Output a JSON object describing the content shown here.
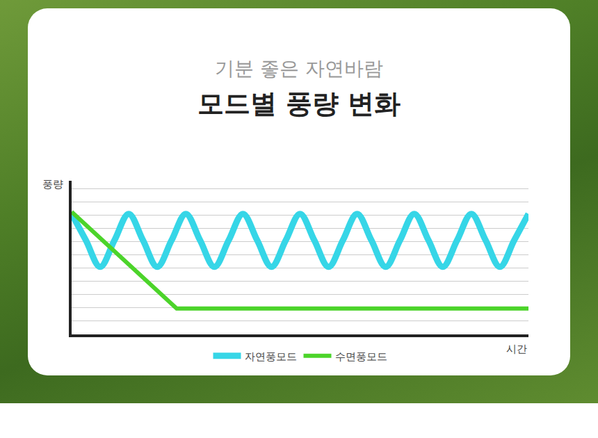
{
  "chart_data": {
    "type": "line",
    "title": "모드별 풍량 변화",
    "subtitle": "기분 좋은 자연바람",
    "xlabel": "시간",
    "ylabel": "풍량",
    "xlim": [
      0,
      100
    ],
    "ylim": [
      0,
      11.6
    ],
    "yticks": [
      0,
      1,
      2,
      3,
      4,
      5,
      6,
      7,
      8,
      9,
      10,
      11
    ],
    "grid": true,
    "legend": "bottom",
    "tick_labels": false,
    "series": [
      {
        "name": "자연풍모드",
        "color": "#36d6e7",
        "line_style": "smooth",
        "x": [
          0,
          3.125,
          6.25,
          9.375,
          12.5,
          15.625,
          18.75,
          21.875,
          25,
          28.125,
          31.25,
          34.375,
          37.5,
          40.625,
          43.75,
          46.875,
          50,
          53.125,
          56.25,
          59.375,
          62.5,
          65.625,
          68.75,
          71.875,
          75,
          78.125,
          81.25,
          84.375,
          87.5,
          90.625,
          93.75,
          96.875,
          100
        ],
        "values": [
          9.1,
          7.1,
          5.1,
          7.1,
          9.1,
          7.1,
          5.1,
          7.1,
          9.1,
          7.1,
          5.1,
          7.1,
          9.1,
          7.1,
          5.1,
          7.1,
          9.1,
          7.1,
          5.1,
          7.1,
          9.1,
          7.1,
          5.1,
          7.1,
          9.1,
          7.1,
          5.1,
          7.1,
          9.1,
          7.1,
          5.1,
          7.1,
          9.1
        ]
      },
      {
        "name": "수면풍모드",
        "color": "#4cd42a",
        "line_style": "solid",
        "x": [
          0,
          23,
          100
        ],
        "values": [
          9.25,
          1.95,
          1.95
        ]
      }
    ]
  }
}
